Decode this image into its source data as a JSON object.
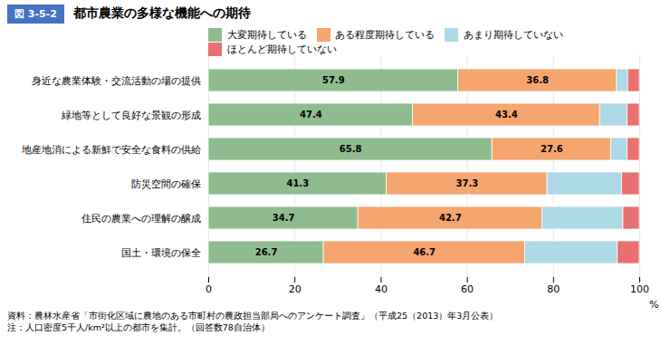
{
  "chart_data": {
    "type": "bar",
    "orientation": "horizontal",
    "stacked": true,
    "title": "都市農業の多様な機能への期待",
    "figure_number": "図 3-5-2",
    "categories": [
      "身近な農業体験・交流活動の場の提供",
      "緑地等として良好な景観の形成",
      "地産地消による新鮮で安全な食料の供給",
      "防災空間の確保",
      "住民の農業への理解の醸成",
      "国土・環境の保全"
    ],
    "series": [
      {
        "name": "大変期待している",
        "color": "#8fbc8f",
        "values": [
          57.9,
          47.4,
          65.8,
          41.3,
          34.7,
          26.7
        ],
        "data_labels": true
      },
      {
        "name": "ある程度期待している",
        "color": "#f5a56e",
        "values": [
          36.8,
          43.4,
          27.6,
          37.3,
          42.7,
          46.7
        ],
        "data_labels": true
      },
      {
        "name": "あまり期待していない",
        "color": "#add8e6",
        "values": [
          2.6,
          6.4,
          3.8,
          17.3,
          18.8,
          21.5
        ]
      },
      {
        "name": "ほとんど期待していない",
        "color": "#e87070",
        "values": [
          2.7,
          2.8,
          2.8,
          4.1,
          3.8,
          5.1
        ]
      }
    ],
    "x_label": "%",
    "xlim": [
      0,
      100
    ],
    "xticks": [
      0,
      20,
      40,
      60,
      80,
      100
    ],
    "grid": true,
    "legend": "top",
    "footnotes": [
      "資料：農林水産省「市街化区域に農地のある市町村の農政担当部局へのアンケート調査」（平成25（2013）年3月公表）",
      "注：人口密度5千人/km²以上の都市を集計。（回答数78自治体）"
    ]
  }
}
